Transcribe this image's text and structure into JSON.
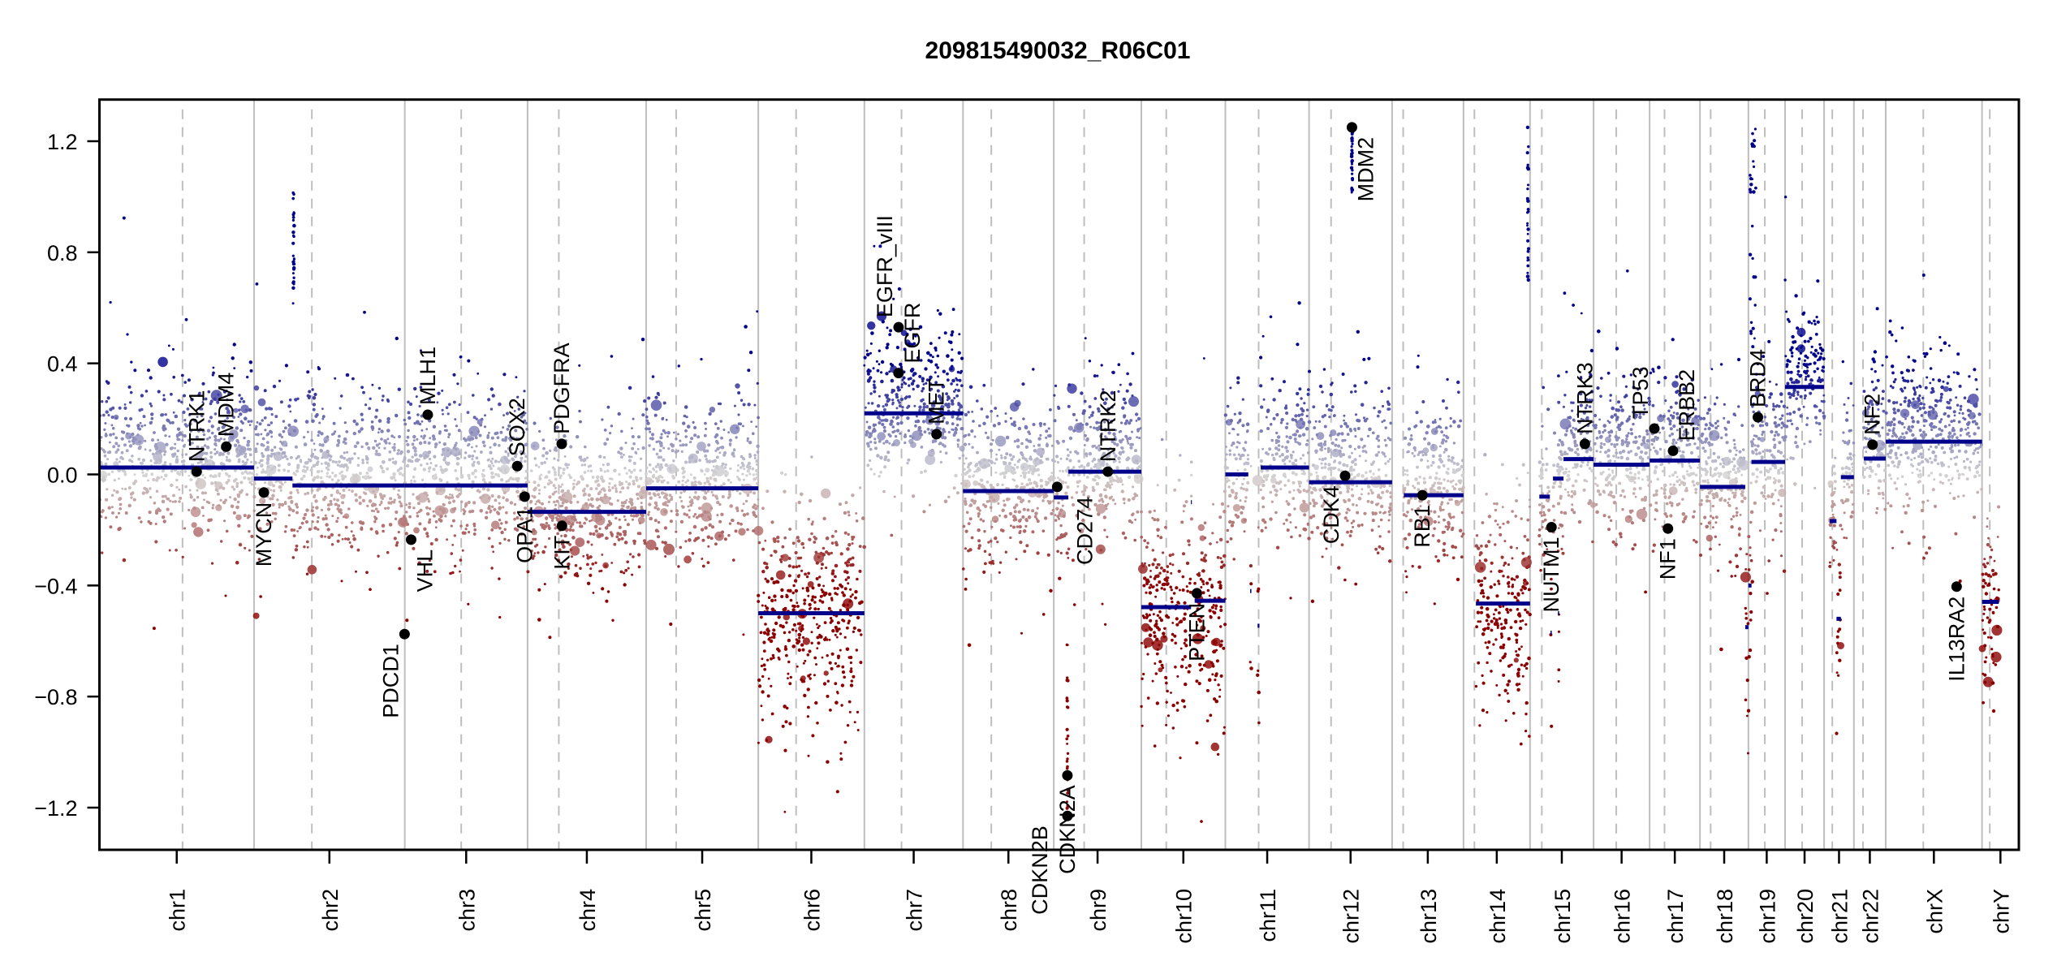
{
  "chart_data": {
    "type": "scatter",
    "title": "209815490032_R06C01",
    "xlabel": "",
    "ylabel": "",
    "ylim": [
      -1.25,
      1.25
    ],
    "y_ticks": [
      {
        "value": 1.2,
        "label": "1.2"
      },
      {
        "value": 0.8,
        "label": "0.8"
      },
      {
        "value": 0.4,
        "label": "0.4"
      },
      {
        "value": 0.0,
        "label": "0.0"
      },
      {
        "value": -0.4,
        "label": "−0.4"
      },
      {
        "value": -0.8,
        "label": "−0.8"
      },
      {
        "value": -1.2,
        "label": "−1.2"
      }
    ],
    "grid": false,
    "legend": "none",
    "chromosomes": [
      {
        "name": "chr1",
        "length_mb": 249.3,
        "centromere_mb": 134.0
      },
      {
        "name": "chr2",
        "length_mb": 243.2,
        "centromere_mb": 93.3
      },
      {
        "name": "chr3",
        "length_mb": 198.0,
        "centromere_mb": 91.0
      },
      {
        "name": "chr4",
        "length_mb": 191.2,
        "centromere_mb": 50.4
      },
      {
        "name": "chr5",
        "length_mb": 180.9,
        "centromere_mb": 48.4
      },
      {
        "name": "chr6",
        "length_mb": 171.1,
        "centromere_mb": 61.0
      },
      {
        "name": "chr7",
        "length_mb": 159.1,
        "centromere_mb": 59.9
      },
      {
        "name": "chr8",
        "length_mb": 146.4,
        "centromere_mb": 45.6
      },
      {
        "name": "chr9",
        "length_mb": 141.2,
        "centromere_mb": 49.0
      },
      {
        "name": "chr10",
        "length_mb": 135.5,
        "centromere_mb": 40.2
      },
      {
        "name": "chr11",
        "length_mb": 135.0,
        "centromere_mb": 53.7
      },
      {
        "name": "chr12",
        "length_mb": 133.9,
        "centromere_mb": 35.5
      },
      {
        "name": "chr13",
        "length_mb": 115.2,
        "centromere_mb": 17.9
      },
      {
        "name": "chr14",
        "length_mb": 107.3,
        "centromere_mb": 17.6
      },
      {
        "name": "chr15",
        "length_mb": 102.5,
        "centromere_mb": 19.0
      },
      {
        "name": "chr16",
        "length_mb": 90.4,
        "centromere_mb": 36.6
      },
      {
        "name": "chr17",
        "length_mb": 81.2,
        "centromere_mb": 24.0
      },
      {
        "name": "chr18",
        "length_mb": 78.1,
        "centromere_mb": 17.2
      },
      {
        "name": "chr19",
        "length_mb": 59.1,
        "centromere_mb": 26.5
      },
      {
        "name": "chr20",
        "length_mb": 63.0,
        "centromere_mb": 27.5
      },
      {
        "name": "chr21",
        "length_mb": 48.1,
        "centromere_mb": 13.2
      },
      {
        "name": "chr22",
        "length_mb": 51.3,
        "centromere_mb": 14.7
      },
      {
        "name": "chrX",
        "length_mb": 155.3,
        "centromere_mb": 60.6
      },
      {
        "name": "chrY",
        "length_mb": 59.4,
        "centromere_mb": 12.5
      }
    ],
    "segments": [
      {
        "chrom": "chr1",
        "start_mb": 0,
        "end_mb": 249.3,
        "value": 0.025
      },
      {
        "chrom": "chr2",
        "start_mb": 0,
        "end_mb": 62,
        "value": -0.015
      },
      {
        "chrom": "chr2",
        "start_mb": 62,
        "end_mb": 243.2,
        "value": -0.04
      },
      {
        "chrom": "chr3",
        "start_mb": 0,
        "end_mb": 198.0,
        "value": -0.04
      },
      {
        "chrom": "chr4",
        "start_mb": 0,
        "end_mb": 191.2,
        "value": -0.135
      },
      {
        "chrom": "chr5",
        "start_mb": 0,
        "end_mb": 180.9,
        "value": -0.05
      },
      {
        "chrom": "chr6",
        "start_mb": 0,
        "end_mb": 171.1,
        "value": -0.5
      },
      {
        "chrom": "chr7",
        "start_mb": 0,
        "end_mb": 159.1,
        "value": 0.22
      },
      {
        "chrom": "chr8",
        "start_mb": 0,
        "end_mb": 146.4,
        "value": -0.06
      },
      {
        "chrom": "chr9",
        "start_mb": 0,
        "end_mb": 23.5,
        "value": -0.083
      },
      {
        "chrom": "chr9",
        "start_mb": 23.5,
        "end_mb": 141.2,
        "value": 0.01
      },
      {
        "chrom": "chr10",
        "start_mb": 0,
        "end_mb": 80,
        "value": -0.478
      },
      {
        "chrom": "chr10",
        "start_mb": 80,
        "end_mb": 81.5,
        "value": -0.1
      },
      {
        "chrom": "chr10",
        "start_mb": 86,
        "end_mb": 135.5,
        "value": -0.455
      },
      {
        "chrom": "chr11",
        "start_mb": 0,
        "end_mb": 37,
        "value": 0.0
      },
      {
        "chrom": "chr11",
        "start_mb": 40,
        "end_mb": 42,
        "value": -0.42
      },
      {
        "chrom": "chr11",
        "start_mb": 52,
        "end_mb": 55,
        "value": -0.545
      },
      {
        "chrom": "chr11",
        "start_mb": 57,
        "end_mb": 135.0,
        "value": 0.025
      },
      {
        "chrom": "chr12",
        "start_mb": 0,
        "end_mb": 133.9,
        "value": -0.028
      },
      {
        "chrom": "chr13",
        "start_mb": 19,
        "end_mb": 115.2,
        "value": -0.075
      },
      {
        "chrom": "chr14",
        "start_mb": 20,
        "end_mb": 107.3,
        "value": -0.465
      },
      {
        "chrom": "chr15",
        "start_mb": 15,
        "end_mb": 32,
        "value": -0.08
      },
      {
        "chrom": "chr15",
        "start_mb": 33,
        "end_mb": 35,
        "value": -0.57
      },
      {
        "chrom": "chr15",
        "start_mb": 37,
        "end_mb": 54,
        "value": -0.015
      },
      {
        "chrom": "chr15",
        "start_mb": 45,
        "end_mb": 47,
        "value": -0.5
      },
      {
        "chrom": "chr15",
        "start_mb": 54,
        "end_mb": 102.5,
        "value": 0.055
      },
      {
        "chrom": "chr16",
        "start_mb": 0,
        "end_mb": 90.4,
        "value": 0.035
      },
      {
        "chrom": "chr17",
        "start_mb": 0,
        "end_mb": 81.2,
        "value": 0.05
      },
      {
        "chrom": "chr18",
        "start_mb": 0,
        "end_mb": 73,
        "value": -0.045
      },
      {
        "chrom": "chr18",
        "start_mb": 73,
        "end_mb": 78.1,
        "value": -0.55
      },
      {
        "chrom": "chr19",
        "start_mb": 0,
        "end_mb": 5,
        "value": -0.4
      },
      {
        "chrom": "chr19",
        "start_mb": 5,
        "end_mb": 59.1,
        "value": 0.045
      },
      {
        "chrom": "chr20",
        "start_mb": 0,
        "end_mb": 63.0,
        "value": 0.315
      },
      {
        "chrom": "chr21",
        "start_mb": 9,
        "end_mb": 20,
        "value": -0.168
      },
      {
        "chrom": "chr21",
        "start_mb": 20,
        "end_mb": 27,
        "value": -0.52
      },
      {
        "chrom": "chr21",
        "start_mb": 27,
        "end_mb": 48.1,
        "value": -0.01
      },
      {
        "chrom": "chr22",
        "start_mb": 16,
        "end_mb": 51.3,
        "value": 0.057
      },
      {
        "chrom": "chrX",
        "start_mb": 0,
        "end_mb": 155.3,
        "value": 0.118
      },
      {
        "chrom": "chrY",
        "start_mb": 0,
        "end_mb": 27,
        "value": -0.459
      }
    ],
    "genes": [
      {
        "name": "NTRK1",
        "chrom": "chr1",
        "pos_mb": 156.8,
        "value": 0.01,
        "label_side": "above"
      },
      {
        "name": "MDM4",
        "chrom": "chr1",
        "pos_mb": 204.5,
        "value": 0.1,
        "label_side": "above"
      },
      {
        "name": "MYCN",
        "chrom": "chr2",
        "pos_mb": 15.9,
        "value": -0.065,
        "label_side": "below"
      },
      {
        "name": "PDCD1",
        "chrom": "chr2",
        "pos_mb": 242.8,
        "value": -0.575,
        "label_side": "below"
      },
      {
        "name": "VHL",
        "chrom": "chr3",
        "pos_mb": 10.2,
        "value": -0.235,
        "label_side": "below"
      },
      {
        "name": "MLH1",
        "chrom": "chr3",
        "pos_mb": 37.0,
        "value": 0.215,
        "label_side": "above"
      },
      {
        "name": "SOX2",
        "chrom": "chr3",
        "pos_mb": 181.4,
        "value": 0.03,
        "label_side": "above"
      },
      {
        "name": "OPA1",
        "chrom": "chr3",
        "pos_mb": 193.3,
        "value": -0.08,
        "label_side": "below"
      },
      {
        "name": "PDGFRA",
        "chrom": "chr4",
        "pos_mb": 55.1,
        "value": 0.11,
        "label_side": "above"
      },
      {
        "name": "KIT",
        "chrom": "chr4",
        "pos_mb": 55.5,
        "value": -0.185,
        "label_side": "below"
      },
      {
        "name": "EGFR",
        "chrom": "chr7",
        "pos_mb": 55.1,
        "value": 0.365,
        "label_side": "above"
      },
      {
        "name": "EGFR_vIII",
        "chrom": "chr7",
        "pos_mb": 55.2,
        "value": 0.53,
        "label_side": "above"
      },
      {
        "name": "MET",
        "chrom": "chr7",
        "pos_mb": 116.3,
        "value": 0.145,
        "label_side": "above"
      },
      {
        "name": "CD274",
        "chrom": "chr9",
        "pos_mb": 5.5,
        "value": -0.045,
        "label_side": "below"
      },
      {
        "name": "CDKN2A",
        "chrom": "chr9",
        "pos_mb": 21.97,
        "value": -1.084,
        "label_side": "below"
      },
      {
        "name": "CDKN2B",
        "chrom": "chr9",
        "pos_mb": 22.0,
        "value": -1.23,
        "label_side": "below"
      },
      {
        "name": "NTRK2",
        "chrom": "chr9",
        "pos_mb": 87.3,
        "value": 0.01,
        "label_side": "above"
      },
      {
        "name": "PTEN",
        "chrom": "chr10",
        "pos_mb": 89.6,
        "value": -0.428,
        "label_side": "below"
      },
      {
        "name": "CDK4",
        "chrom": "chr12",
        "pos_mb": 58.1,
        "value": -0.005,
        "label_side": "below"
      },
      {
        "name": "MDM2",
        "chrom": "chr12",
        "pos_mb": 69.2,
        "value": 1.25,
        "label_side": "below"
      },
      {
        "name": "RB1",
        "chrom": "chr13",
        "pos_mb": 48.9,
        "value": -0.075,
        "label_side": "below"
      },
      {
        "name": "NUTM1",
        "chrom": "chr15",
        "pos_mb": 34.6,
        "value": -0.19,
        "label_side": "below"
      },
      {
        "name": "NTRK3",
        "chrom": "chr15",
        "pos_mb": 88.5,
        "value": 0.11,
        "label_side": "above"
      },
      {
        "name": "TP53",
        "chrom": "chr17",
        "pos_mb": 7.6,
        "value": 0.165,
        "label_side": "above"
      },
      {
        "name": "NF1",
        "chrom": "chr17",
        "pos_mb": 29.5,
        "value": -0.195,
        "label_side": "below"
      },
      {
        "name": "ERBB2",
        "chrom": "chr17",
        "pos_mb": 37.8,
        "value": 0.085,
        "label_side": "above"
      },
      {
        "name": "BRD4",
        "chrom": "chr19",
        "pos_mb": 15.3,
        "value": 0.206,
        "label_side": "above"
      },
      {
        "name": "NF2",
        "chrom": "chr22",
        "pos_mb": 30.0,
        "value": 0.107,
        "label_side": "above"
      },
      {
        "name": "IL13RA2",
        "chrom": "chrX",
        "pos_mb": 114.3,
        "value": -0.404,
        "label_side": "below"
      }
    ],
    "focal_probe_clusters": [
      {
        "chrom": "chr2",
        "start_mb": 63,
        "end_mb": 65,
        "value_range": [
          0.6,
          1.05
        ]
      },
      {
        "chrom": "chr12",
        "start_mb": 68.5,
        "end_mb": 70,
        "value_range": [
          1.0,
          1.25
        ]
      },
      {
        "chrom": "chr14",
        "start_mb": 103,
        "end_mb": 105,
        "value_range": [
          0.7,
          1.25
        ]
      },
      {
        "chrom": "chr19",
        "start_mb": 2,
        "end_mb": 12,
        "value_range": [
          0.4,
          1.25
        ]
      },
      {
        "chrom": "chr9",
        "start_mb": 21,
        "end_mb": 23,
        "value_range": [
          -1.25,
          -0.6
        ]
      }
    ],
    "colors": {
      "gain": "#00008b",
      "loss": "#8b0000",
      "neutral": "#d3d3d3",
      "segment": "#00008b",
      "gene_marker": "#000000",
      "chromosome_divider": "#bebebe"
    }
  }
}
